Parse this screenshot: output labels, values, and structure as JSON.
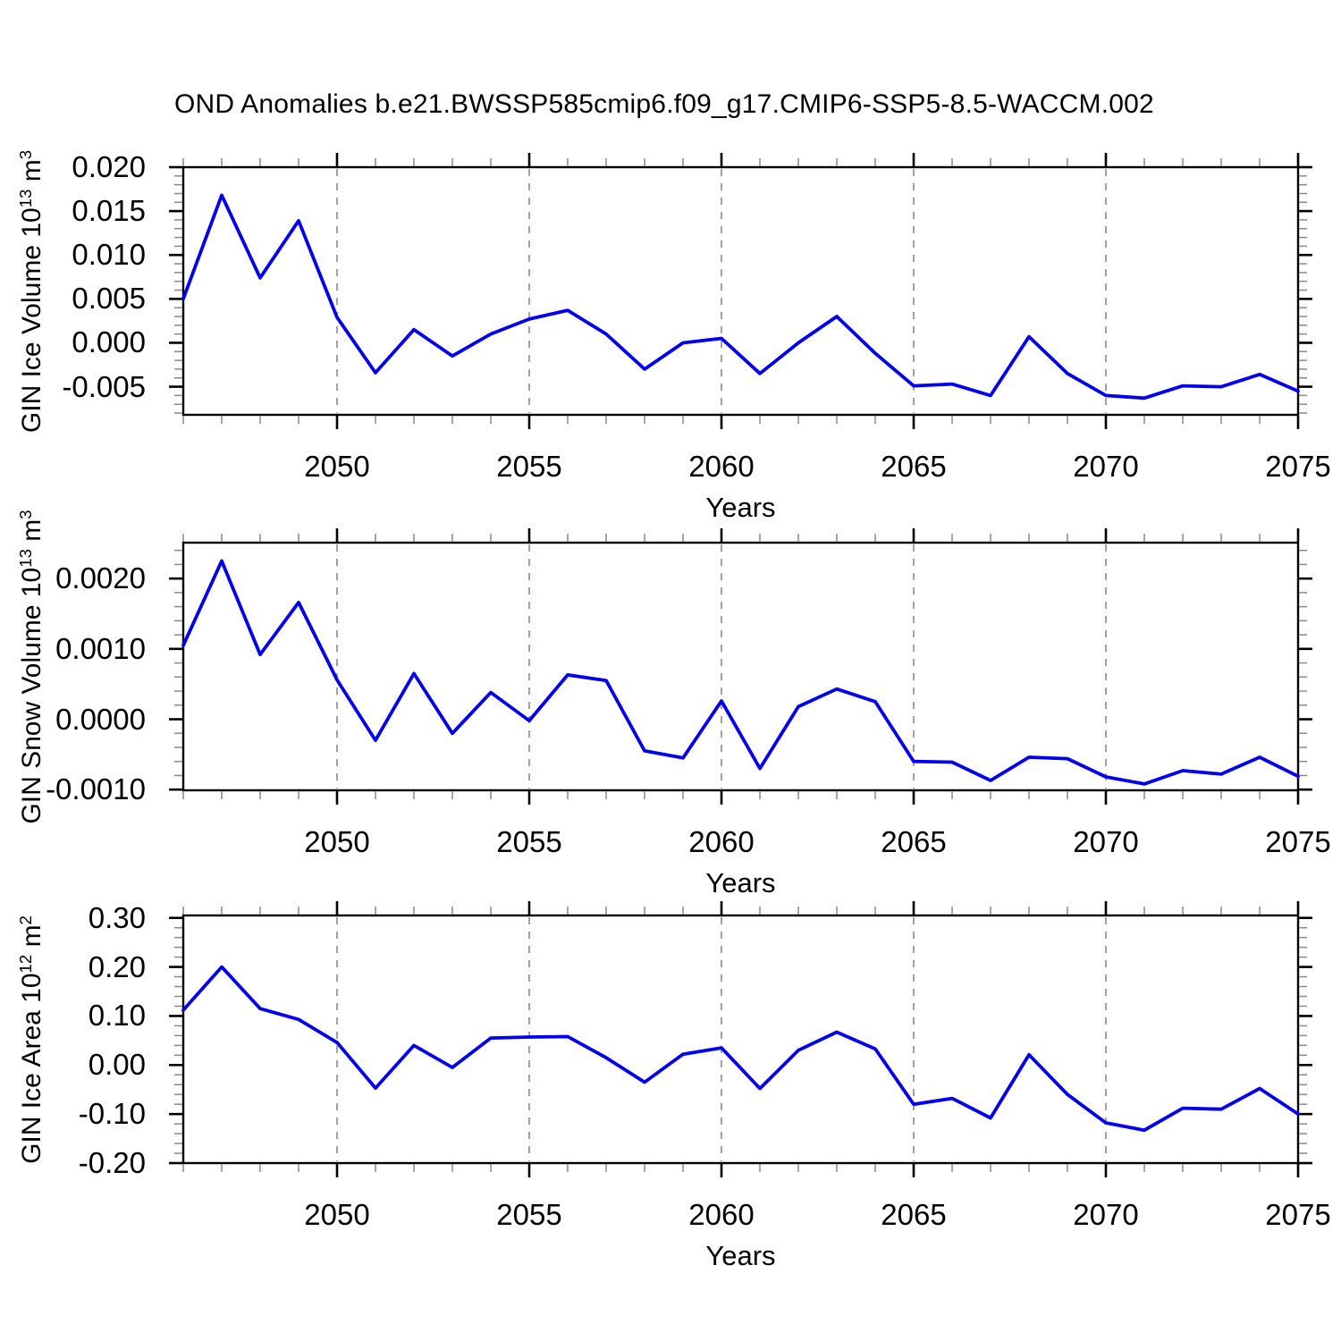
{
  "title": "OND Anomalies b.e21.BWSSP585cmip6.f09_g17.CMIP6-SSP5-8.5-WACCM.002",
  "colors": {
    "line": "#0000ee",
    "grid": "#8a8a8a",
    "frame": "#000000",
    "minor_tick": "#898989",
    "major_tick": "#000000"
  },
  "x_axis": {
    "label": "Years",
    "range": [
      2046,
      2075
    ],
    "tick_labels": [
      "2050",
      "2055",
      "2060",
      "2065",
      "2070",
      "2075"
    ],
    "tick_years": [
      2050,
      2055,
      2060,
      2065,
      2070,
      2075
    ],
    "gridline_years": [
      2050,
      2055,
      2060,
      2065,
      2070
    ]
  },
  "chart_data": [
    {
      "type": "line",
      "name": "gin-ice-volume",
      "ylabel": {
        "pre": "GIN Ice Volume 10",
        "sup1": "13",
        "mid": " m",
        "sup2": "3"
      },
      "xlabel": "Years",
      "ylim": [
        -0.0082,
        0.02
      ],
      "yminor": 0.001,
      "grid": "vertical-dashed",
      "legend": "none",
      "yticks": {
        "labels": [
          "0.020",
          "0.015",
          "0.010",
          "0.005",
          "0.000",
          "-0.005"
        ],
        "values": [
          0.02,
          0.015,
          0.01,
          0.005,
          0.0,
          -0.005
        ]
      },
      "x": [
        2046,
        2047,
        2048,
        2049,
        2050,
        2051,
        2052,
        2053,
        2054,
        2055,
        2056,
        2057,
        2058,
        2059,
        2060,
        2061,
        2062,
        2063,
        2064,
        2065,
        2066,
        2067,
        2068,
        2069,
        2070,
        2071,
        2072,
        2073,
        2074,
        2075
      ],
      "values": [
        0.005,
        0.0168,
        0.0074,
        0.0139,
        0.0029,
        -0.0034,
        0.0015,
        -0.0015,
        0.001,
        0.0027,
        0.0037,
        0.001,
        -0.003,
        0.0,
        0.0005,
        -0.0035,
        0.0,
        0.003,
        -0.0012,
        -0.0049,
        -0.0047,
        -0.006,
        0.0007,
        -0.0035,
        -0.006,
        -0.0063,
        -0.0049,
        -0.005,
        -0.0036,
        -0.0055
      ]
    },
    {
      "type": "line",
      "name": "gin-snow-volume",
      "ylabel": {
        "pre": "GIN Snow Volume 10",
        "sup1": "13",
        "mid": " m",
        "sup2": "3"
      },
      "xlabel": "Years",
      "ylim": [
        -0.00101,
        0.00251
      ],
      "yminor": 0.0002,
      "grid": "vertical-dashed",
      "legend": "none",
      "yticks": {
        "labels": [
          "0.0020",
          "0.0010",
          "0.0000",
          "-0.0010"
        ],
        "values": [
          0.002,
          0.001,
          0.0,
          -0.001
        ]
      },
      "x": [
        2046,
        2047,
        2048,
        2049,
        2050,
        2051,
        2052,
        2053,
        2054,
        2055,
        2056,
        2057,
        2058,
        2059,
        2060,
        2061,
        2062,
        2063,
        2064,
        2065,
        2066,
        2067,
        2068,
        2069,
        2070,
        2071,
        2072,
        2073,
        2074,
        2075
      ],
      "values": [
        0.00105,
        0.00225,
        0.00092,
        0.00166,
        0.00056,
        -0.0003,
        0.00065,
        -0.0002,
        0.00038,
        -2e-05,
        0.00063,
        0.00055,
        -0.00045,
        -0.00055,
        0.00026,
        -0.0007,
        0.00018,
        0.00043,
        0.00025,
        -0.0006,
        -0.00061,
        -0.00087,
        -0.00054,
        -0.00056,
        -0.00082,
        -0.00092,
        -0.00073,
        -0.00078,
        -0.00054,
        -0.00081
      ]
    },
    {
      "type": "line",
      "name": "gin-ice-area",
      "ylabel": {
        "pre": "GIN Ice Area 10",
        "sup1": "12",
        "mid": " m",
        "sup2": "2"
      },
      "xlabel": "Years",
      "ylim": [
        -0.2,
        0.305
      ],
      "yminor": 0.02,
      "grid": "vertical-dashed",
      "legend": "none",
      "yticks": {
        "labels": [
          "0.30",
          "0.20",
          "0.10",
          "0.00",
          "-0.10",
          "-0.20"
        ],
        "values": [
          0.3,
          0.2,
          0.1,
          0.0,
          -0.1,
          -0.2
        ]
      },
      "x": [
        2046,
        2047,
        2048,
        2049,
        2050,
        2051,
        2052,
        2053,
        2054,
        2055,
        2056,
        2057,
        2058,
        2059,
        2060,
        2061,
        2062,
        2063,
        2064,
        2065,
        2066,
        2067,
        2068,
        2069,
        2070,
        2071,
        2072,
        2073,
        2074,
        2075
      ],
      "values": [
        0.112,
        0.2,
        0.115,
        0.093,
        0.046,
        -0.047,
        0.04,
        -0.005,
        0.055,
        0.057,
        0.058,
        0.015,
        -0.035,
        0.022,
        0.035,
        -0.048,
        0.03,
        0.067,
        0.033,
        -0.08,
        -0.068,
        -0.108,
        0.021,
        -0.06,
        -0.118,
        -0.133,
        -0.088,
        -0.09,
        -0.048,
        -0.1
      ]
    }
  ]
}
